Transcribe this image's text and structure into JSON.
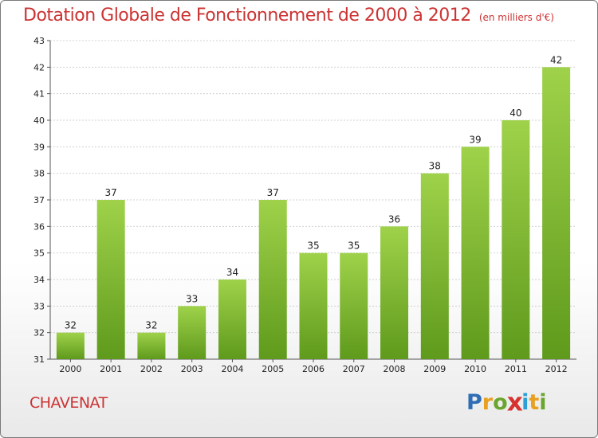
{
  "chart_data": {
    "type": "bar",
    "title": "Dotation Globale de Fonctionnement de 2000 à 2012",
    "subtitle": "(en milliers d'€)",
    "xlabel": "",
    "ylabel": "",
    "categories": [
      "2000",
      "2001",
      "2002",
      "2003",
      "2004",
      "2005",
      "2006",
      "2007",
      "2008",
      "2009",
      "2010",
      "2011",
      "2012"
    ],
    "values": [
      32,
      37,
      32,
      33,
      34,
      37,
      35,
      35,
      36,
      38,
      39,
      40,
      42
    ],
    "ylim": [
      31,
      43
    ],
    "yticks": [
      31,
      32,
      33,
      34,
      35,
      36,
      37,
      38,
      39,
      40,
      41,
      42,
      43
    ],
    "grid": true,
    "legend": "none"
  },
  "footer": {
    "commune": "CHAVENAT",
    "logo_letters": [
      {
        "ch": "P",
        "color": "#2f6db5"
      },
      {
        "ch": "r",
        "color": "#e8a020"
      },
      {
        "ch": "o",
        "color": "#6aa52d"
      },
      {
        "ch": "x",
        "color": "#d6332f"
      },
      {
        "ch": "i",
        "color": "#2f9fd8"
      },
      {
        "ch": "t",
        "color": "#e8a020"
      },
      {
        "ch": "i",
        "color": "#6aa52d"
      }
    ]
  },
  "colors": {
    "title": "#cc3333",
    "bar_top": "#9fd24a",
    "bar_bottom": "#5f9a1c",
    "grid": "#d0d0d0",
    "axis": "#555555"
  }
}
